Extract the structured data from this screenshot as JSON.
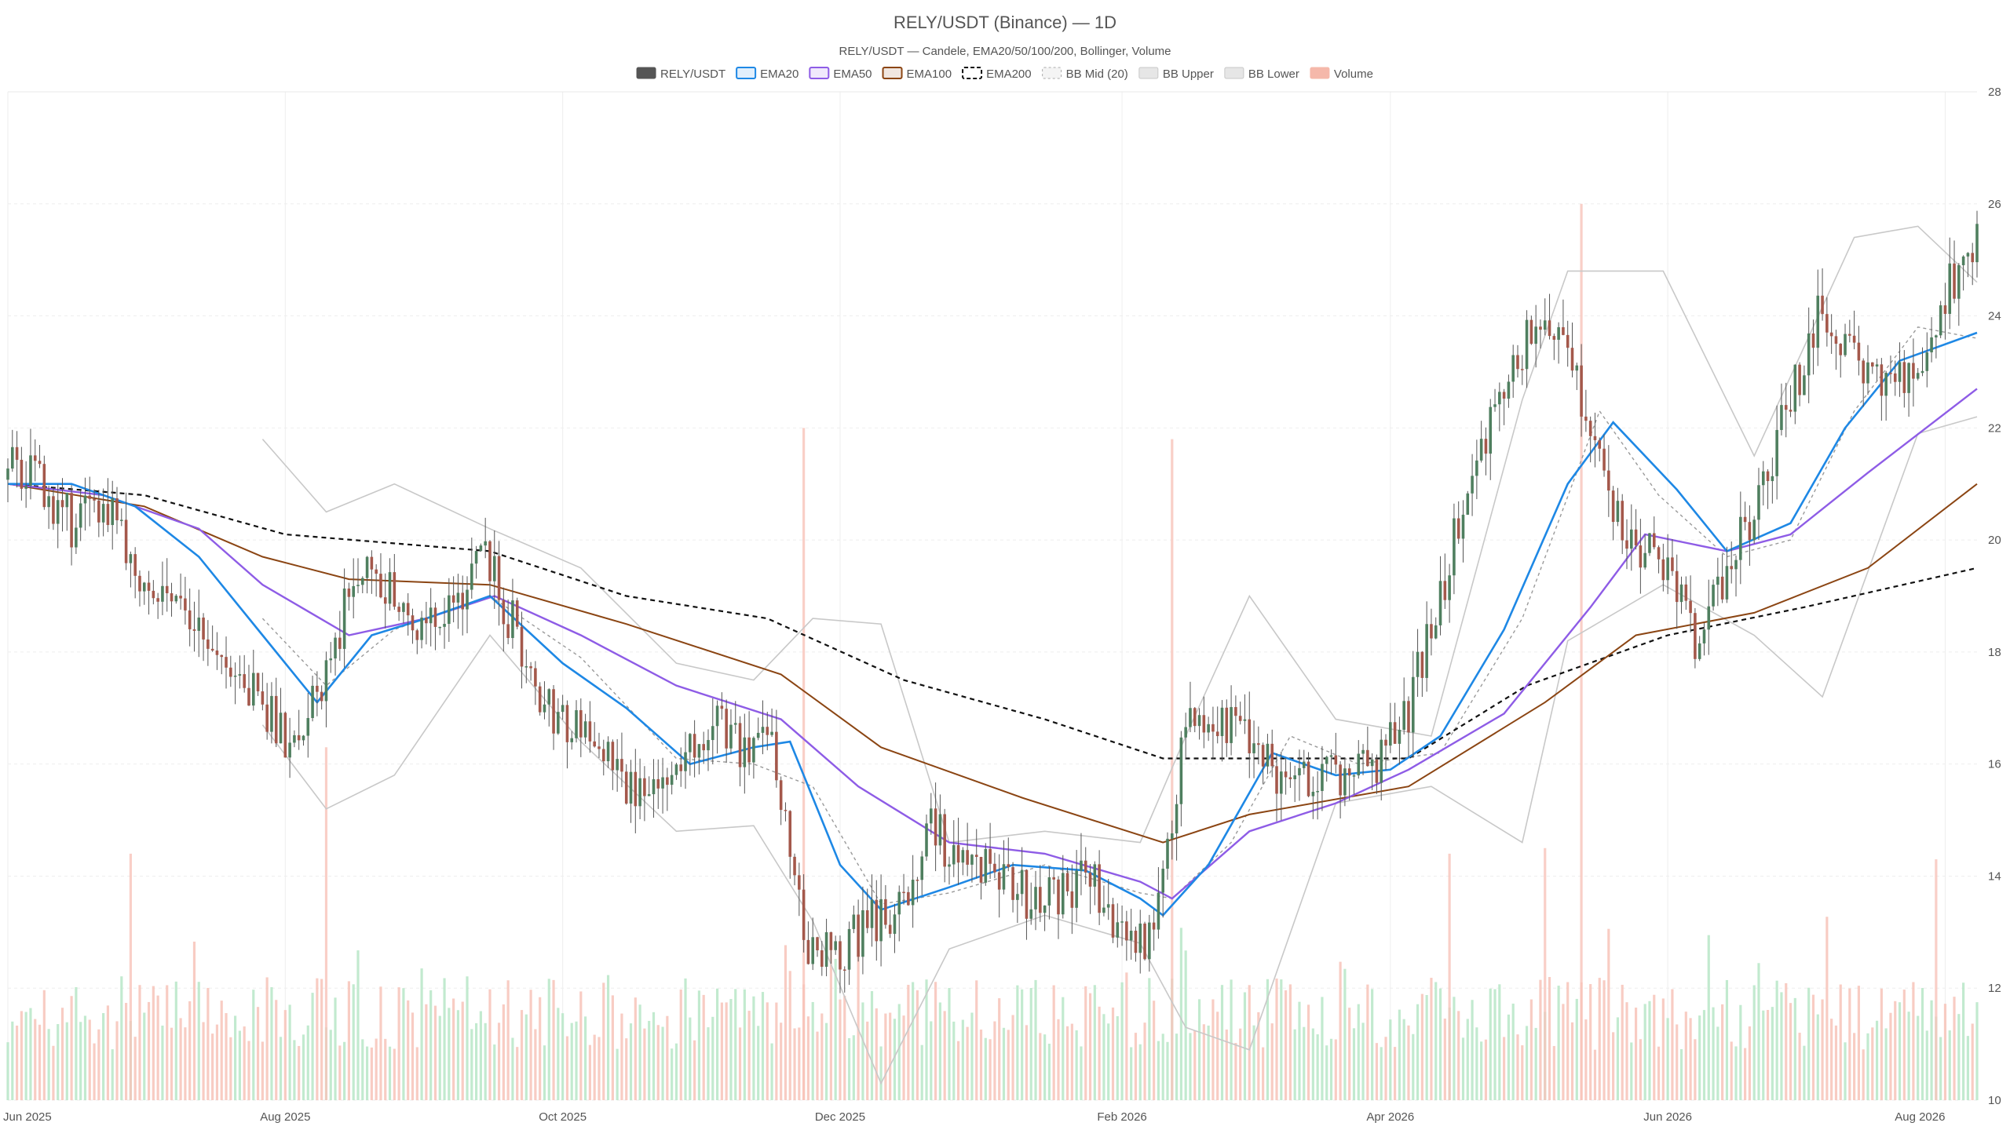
{
  "chart_data": {
    "type": "candlestick",
    "title": "RELY/USDT (Binance) — 1D",
    "subtitle": "RELY/USDT — Candele, EMA20/50/100/200, Bollinger, Volume",
    "legend": [
      {
        "label": "RELY/USDT",
        "color": "#555555",
        "style": "candle"
      },
      {
        "label": "EMA20",
        "color": "#1e88e5",
        "style": "line"
      },
      {
        "label": "EMA50",
        "color": "#8e5ce6",
        "style": "line"
      },
      {
        "label": "EMA100",
        "color": "#8b4513",
        "style": "line"
      },
      {
        "label": "EMA200",
        "color": "#111111",
        "style": "dashed"
      },
      {
        "label": "BB Mid (20)",
        "color": "#aaaaaa",
        "style": "dotted"
      },
      {
        "label": "BB Upper",
        "color": "#c8c8c8",
        "style": "line"
      },
      {
        "label": "BB Lower",
        "color": "#c8c8c8",
        "style": "line"
      },
      {
        "label": "Volume",
        "color": "#f5b8aa",
        "style": "bar"
      }
    ],
    "y_axis": {
      "side": "right",
      "min": 10,
      "max": 28,
      "ticks": [
        10,
        12,
        14,
        16,
        18,
        20,
        22,
        24,
        26,
        28
      ]
    },
    "x_axis": {
      "start": "2025-06-01",
      "end": "2026-08-08",
      "ticks": [
        {
          "date": "2025-06-01",
          "label": "Jun 2025"
        },
        {
          "date": "2025-08-01",
          "label": "Aug 2025"
        },
        {
          "date": "2025-10-01",
          "label": "Oct 2025"
        },
        {
          "date": "2025-12-01",
          "label": "Dec 2025"
        },
        {
          "date": "2026-02-01",
          "label": "Feb 2026"
        },
        {
          "date": "2026-04-01",
          "label": "Apr 2026"
        },
        {
          "date": "2026-06-01",
          "label": "Jun 2026"
        },
        {
          "date": "2026-08-01",
          "label": "Aug 2026"
        }
      ]
    },
    "grid": true,
    "colors": {
      "up": "#4f7f5f",
      "down": "#a4584b",
      "volume_up": "#b7e6c7",
      "volume_down": "#f7c3b9",
      "ema20": "#1e88e5",
      "ema50": "#8e5ce6",
      "ema100": "#8b4513",
      "ema200": "#111111",
      "bb_mid": "#9a9a9a",
      "bb_band": "#c8c8c8"
    },
    "price_path": [
      [
        "2025-06-01",
        21.4
      ],
      [
        "2025-06-08",
        21.0
      ],
      [
        "2025-06-15",
        20.3
      ],
      [
        "2025-06-22",
        20.6
      ],
      [
        "2025-06-29",
        19.6
      ],
      [
        "2025-07-06",
        18.7
      ],
      [
        "2025-07-13",
        18.4
      ],
      [
        "2025-07-20",
        17.4
      ],
      [
        "2025-07-27",
        17.1
      ],
      [
        "2025-08-03",
        16.2
      ],
      [
        "2025-08-10",
        17.6
      ],
      [
        "2025-08-17",
        19.5
      ],
      [
        "2025-08-24",
        19.0
      ],
      [
        "2025-08-31",
        18.6
      ],
      [
        "2025-09-07",
        18.7
      ],
      [
        "2025-09-14",
        19.7
      ],
      [
        "2025-09-21",
        18.3
      ],
      [
        "2025-09-28",
        16.9
      ],
      [
        "2025-10-05",
        16.6
      ],
      [
        "2025-10-12",
        16.1
      ],
      [
        "2025-10-19",
        15.2
      ],
      [
        "2025-10-26",
        15.9
      ],
      [
        "2025-11-02",
        16.8
      ],
      [
        "2025-11-09",
        16.3
      ],
      [
        "2025-11-16",
        16.4
      ],
      [
        "2025-11-23",
        12.8
      ],
      [
        "2025-11-30",
        12.6
      ],
      [
        "2025-12-07",
        13.1
      ],
      [
        "2025-12-14",
        13.3
      ],
      [
        "2025-12-21",
        14.8
      ],
      [
        "2025-12-28",
        14.3
      ],
      [
        "2026-01-04",
        14.3
      ],
      [
        "2026-01-11",
        13.6
      ],
      [
        "2026-01-18",
        13.7
      ],
      [
        "2026-01-25",
        14.0
      ],
      [
        "2026-02-01",
        13.0
      ],
      [
        "2026-02-08",
        12.8
      ],
      [
        "2026-02-15",
        16.8
      ],
      [
        "2026-02-22",
        16.8
      ],
      [
        "2026-03-01",
        16.6
      ],
      [
        "2026-03-08",
        15.5
      ],
      [
        "2026-03-15",
        15.9
      ],
      [
        "2026-03-22",
        15.6
      ],
      [
        "2026-03-29",
        16.0
      ],
      [
        "2026-04-05",
        17.0
      ],
      [
        "2026-04-12",
        19.0
      ],
      [
        "2026-04-19",
        21.2
      ],
      [
        "2026-04-26",
        22.5
      ],
      [
        "2026-05-03",
        24.0
      ],
      [
        "2026-05-10",
        23.6
      ],
      [
        "2026-05-17",
        21.3
      ],
      [
        "2026-05-24",
        20.0
      ],
      [
        "2026-05-31",
        19.6
      ],
      [
        "2026-06-07",
        18.2
      ],
      [
        "2026-06-14",
        19.5
      ],
      [
        "2026-06-21",
        20.8
      ],
      [
        "2026-06-28",
        22.5
      ],
      [
        "2026-07-05",
        24.2
      ],
      [
        "2026-07-12",
        23.4
      ],
      [
        "2026-07-19",
        22.7
      ],
      [
        "2026-07-26",
        23.2
      ],
      [
        "2026-08-02",
        24.6
      ],
      [
        "2026-08-08",
        25.4
      ]
    ],
    "ema20": [
      [
        "2025-06-01",
        21.0
      ],
      [
        "2025-06-15",
        21.0
      ],
      [
        "2025-06-29",
        20.6
      ],
      [
        "2025-07-13",
        19.7
      ],
      [
        "2025-07-27",
        18.3
      ],
      [
        "2025-08-08",
        17.1
      ],
      [
        "2025-08-20",
        18.3
      ],
      [
        "2025-09-01",
        18.6
      ],
      [
        "2025-09-15",
        19.0
      ],
      [
        "2025-10-01",
        17.8
      ],
      [
        "2025-10-15",
        17.0
      ],
      [
        "2025-10-29",
        16.0
      ],
      [
        "2025-11-12",
        16.3
      ],
      [
        "2025-11-20",
        16.4
      ],
      [
        "2025-12-01",
        14.2
      ],
      [
        "2025-12-10",
        13.4
      ],
      [
        "2025-12-25",
        13.8
      ],
      [
        "2026-01-08",
        14.2
      ],
      [
        "2026-01-24",
        14.1
      ],
      [
        "2026-02-05",
        13.6
      ],
      [
        "2026-02-10",
        13.3
      ],
      [
        "2026-02-20",
        14.2
      ],
      [
        "2026-03-06",
        16.2
      ],
      [
        "2026-03-20",
        15.8
      ],
      [
        "2026-04-01",
        15.9
      ],
      [
        "2026-04-12",
        16.5
      ],
      [
        "2026-04-26",
        18.4
      ],
      [
        "2026-05-10",
        21.0
      ],
      [
        "2026-05-20",
        22.1
      ],
      [
        "2026-06-03",
        20.9
      ],
      [
        "2026-06-14",
        19.8
      ],
      [
        "2026-06-28",
        20.3
      ],
      [
        "2026-07-10",
        22.0
      ],
      [
        "2026-07-22",
        23.2
      ],
      [
        "2026-08-08",
        23.7
      ]
    ],
    "ema50": [
      [
        "2025-06-01",
        21.0
      ],
      [
        "2025-06-22",
        20.8
      ],
      [
        "2025-07-13",
        20.2
      ],
      [
        "2025-07-27",
        19.2
      ],
      [
        "2025-08-15",
        18.3
      ],
      [
        "2025-09-01",
        18.6
      ],
      [
        "2025-09-16",
        19.0
      ],
      [
        "2025-10-05",
        18.3
      ],
      [
        "2025-10-26",
        17.4
      ],
      [
        "2025-11-18",
        16.8
      ],
      [
        "2025-12-05",
        15.6
      ],
      [
        "2025-12-25",
        14.6
      ],
      [
        "2026-01-15",
        14.4
      ],
      [
        "2026-02-05",
        13.9
      ],
      [
        "2026-02-12",
        13.6
      ],
      [
        "2026-03-01",
        14.8
      ],
      [
        "2026-03-20",
        15.3
      ],
      [
        "2026-04-05",
        15.9
      ],
      [
        "2026-04-26",
        16.9
      ],
      [
        "2026-05-15",
        18.8
      ],
      [
        "2026-05-27",
        20.1
      ],
      [
        "2026-06-14",
        19.8
      ],
      [
        "2026-06-28",
        20.1
      ],
      [
        "2026-07-15",
        21.2
      ],
      [
        "2026-08-08",
        22.7
      ]
    ],
    "ema100": [
      [
        "2025-06-01",
        21.0
      ],
      [
        "2025-07-01",
        20.6
      ],
      [
        "2025-07-27",
        19.7
      ],
      [
        "2025-08-15",
        19.3
      ],
      [
        "2025-09-15",
        19.2
      ],
      [
        "2025-10-15",
        18.5
      ],
      [
        "2025-11-18",
        17.6
      ],
      [
        "2025-12-10",
        16.3
      ],
      [
        "2026-01-10",
        15.4
      ],
      [
        "2026-02-10",
        14.6
      ],
      [
        "2026-03-01",
        15.1
      ],
      [
        "2026-04-05",
        15.6
      ],
      [
        "2026-05-05",
        17.1
      ],
      [
        "2026-05-25",
        18.3
      ],
      [
        "2026-06-20",
        18.7
      ],
      [
        "2026-07-15",
        19.5
      ],
      [
        "2026-08-08",
        21.0
      ]
    ],
    "ema200": [
      [
        "2025-06-01",
        21.0
      ],
      [
        "2025-07-01",
        20.8
      ],
      [
        "2025-08-01",
        20.1
      ],
      [
        "2025-09-15",
        19.8
      ],
      [
        "2025-10-15",
        19.0
      ],
      [
        "2025-11-15",
        18.6
      ],
      [
        "2025-12-15",
        17.5
      ],
      [
        "2026-01-15",
        16.8
      ],
      [
        "2026-02-10",
        16.1
      ],
      [
        "2026-03-15",
        16.1
      ],
      [
        "2026-04-05",
        16.1
      ],
      [
        "2026-05-01",
        17.4
      ],
      [
        "2026-06-01",
        18.3
      ],
      [
        "2026-07-01",
        18.8
      ],
      [
        "2026-08-08",
        19.5
      ]
    ],
    "bb_mid": [
      [
        "2025-07-27",
        18.6
      ],
      [
        "2025-08-10",
        17.4
      ],
      [
        "2025-08-25",
        18.4
      ],
      [
        "2025-09-15",
        19.0
      ],
      [
        "2025-10-05",
        17.9
      ],
      [
        "2025-10-26",
        16.1
      ],
      [
        "2025-11-12",
        16.0
      ],
      [
        "2025-11-25",
        15.6
      ],
      [
        "2025-12-10",
        13.5
      ],
      [
        "2025-12-25",
        13.7
      ],
      [
        "2026-01-15",
        14.2
      ],
      [
        "2026-02-05",
        13.7
      ],
      [
        "2026-02-12",
        13.6
      ],
      [
        "2026-02-25",
        14.6
      ],
      [
        "2026-03-10",
        16.5
      ],
      [
        "2026-03-25",
        16.0
      ],
      [
        "2026-04-12",
        16.2
      ],
      [
        "2026-04-30",
        18.6
      ],
      [
        "2026-05-17",
        22.3
      ],
      [
        "2026-05-30",
        20.8
      ],
      [
        "2026-06-14",
        19.7
      ],
      [
        "2026-06-28",
        20.0
      ],
      [
        "2026-07-12",
        22.3
      ],
      [
        "2026-07-26",
        23.8
      ],
      [
        "2026-08-08",
        23.6
      ]
    ],
    "bb_upper": [
      [
        "2025-07-27",
        21.8
      ],
      [
        "2025-08-10",
        20.5
      ],
      [
        "2025-08-25",
        21.0
      ],
      [
        "2025-09-15",
        20.2
      ],
      [
        "2025-10-05",
        19.5
      ],
      [
        "2025-10-26",
        17.8
      ],
      [
        "2025-11-12",
        17.5
      ],
      [
        "2025-11-25",
        18.6
      ],
      [
        "2025-12-10",
        18.5
      ],
      [
        "2025-12-25",
        14.6
      ],
      [
        "2026-01-15",
        14.8
      ],
      [
        "2026-02-05",
        14.6
      ],
      [
        "2026-02-15",
        16.5
      ],
      [
        "2026-03-01",
        19.0
      ],
      [
        "2026-03-20",
        16.8
      ],
      [
        "2026-04-10",
        16.5
      ],
      [
        "2026-04-30",
        22.5
      ],
      [
        "2026-05-10",
        24.8
      ],
      [
        "2026-05-31",
        24.8
      ],
      [
        "2026-06-20",
        21.5
      ],
      [
        "2026-07-12",
        25.4
      ],
      [
        "2026-07-26",
        25.6
      ],
      [
        "2026-08-08",
        24.6
      ]
    ],
    "bb_lower": [
      [
        "2025-07-27",
        16.7
      ],
      [
        "2025-08-10",
        15.2
      ],
      [
        "2025-08-25",
        15.8
      ],
      [
        "2025-09-15",
        18.3
      ],
      [
        "2025-10-05",
        16.4
      ],
      [
        "2025-10-26",
        14.8
      ],
      [
        "2025-11-12",
        14.9
      ],
      [
        "2025-11-25",
        13.2
      ],
      [
        "2025-12-10",
        10.3
      ],
      [
        "2025-12-25",
        12.7
      ],
      [
        "2026-01-15",
        13.3
      ],
      [
        "2026-02-05",
        12.8
      ],
      [
        "2026-02-15",
        11.3
      ],
      [
        "2026-03-01",
        10.9
      ],
      [
        "2026-03-20",
        15.3
      ],
      [
        "2026-04-10",
        15.6
      ],
      [
        "2026-04-30",
        14.6
      ],
      [
        "2026-05-10",
        18.2
      ],
      [
        "2026-05-31",
        19.2
      ],
      [
        "2026-06-20",
        18.3
      ],
      [
        "2026-07-05",
        17.2
      ],
      [
        "2026-07-26",
        21.9
      ],
      [
        "2026-08-08",
        22.2
      ]
    ],
    "volume_spikes": [
      {
        "date": "2025-06-28",
        "height": 14.4
      },
      {
        "date": "2025-08-10",
        "height": 16.3
      },
      {
        "date": "2025-11-23",
        "height": 22.0
      },
      {
        "date": "2026-02-12",
        "height": 21.8
      },
      {
        "date": "2026-05-13",
        "height": 26.0
      },
      {
        "date": "2026-05-05",
        "height": 14.5
      },
      {
        "date": "2026-04-14",
        "height": 14.4
      },
      {
        "date": "2026-07-30",
        "height": 14.3
      }
    ]
  }
}
